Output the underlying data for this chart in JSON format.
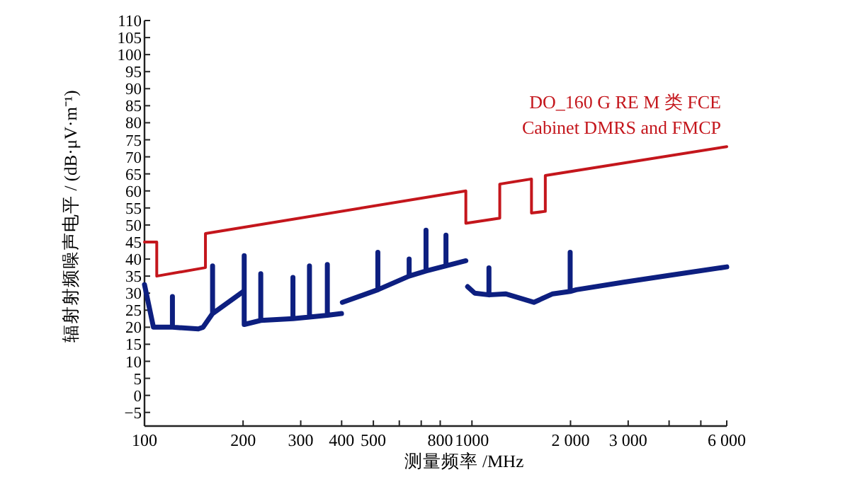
{
  "chart_data": {
    "type": "line",
    "xlabel": "测量频率 /MHz",
    "ylabel": "辐射射频噪声电平 / (dB·μV·m⁻¹)",
    "log": "x",
    "xlim": [
      100,
      6000
    ],
    "ylim": [
      -9,
      110
    ],
    "xticks": [
      100,
      200,
      300,
      400,
      500,
      {
        "value": 600,
        "label": null
      },
      {
        "value": 700,
        "label": null
      },
      800,
      {
        "value": 1000,
        "label": "1000"
      },
      {
        "value": 2000,
        "label": "2 000"
      },
      {
        "value": 3000,
        "label": "3 000"
      },
      {
        "value": 4000,
        "label": null
      },
      {
        "value": 5000,
        "label": null
      },
      {
        "value": 6000,
        "label": "6 000"
      }
    ],
    "yticks": [
      {
        "value": -5,
        "label": "−5"
      },
      0,
      5,
      10,
      15,
      20,
      25,
      30,
      35,
      40,
      45,
      50,
      55,
      60,
      65,
      70,
      75,
      80,
      85,
      90,
      95,
      100,
      105,
      110
    ],
    "series": [
      {
        "color": "#0d1f80",
        "x": [
          100,
          106.5,
          121.7,
          121.7,
          121.7,
          146,
          151,
          161.4,
          161.4,
          161.4,
          200.3
        ],
        "values": [
          32.5,
          20,
          20,
          29,
          20,
          19.5,
          20,
          24,
          38,
          24,
          30.5
        ]
      },
      {
        "color": "#0d1f80",
        "x": [
          201.6,
          201.6,
          201.6,
          226.5,
          226.5,
          226.5,
          284,
          284,
          284,
          319,
          319,
          319,
          361.7,
          361.7,
          361.7,
          399.6
        ],
        "values": [
          20.8,
          41,
          20.8,
          22,
          35.7,
          22,
          22.5,
          34.6,
          22.5,
          23,
          38,
          23,
          23.5,
          38.4,
          23.5,
          24
        ]
      },
      {
        "color": "#0d1f80",
        "x": [
          402,
          516,
          516,
          516,
          643,
          643,
          643,
          724,
          724,
          724,
          833,
          833,
          833,
          958
        ],
        "values": [
          27.3,
          31,
          42,
          31,
          35,
          40,
          35,
          36.5,
          48.5,
          36.5,
          38,
          47,
          38,
          39.5
        ]
      },
      {
        "color": "#0d1f80",
        "x": [
          970,
          1020,
          1127,
          1127,
          1127,
          1266,
          1545,
          1765,
          1995,
          1995,
          1995,
          2084,
          2906,
          4051,
          6000
        ],
        "values": [
          31.9,
          30,
          29.5,
          37.4,
          29.5,
          29.8,
          27.3,
          29.8,
          30.5,
          42,
          30.5,
          31,
          33.2,
          35.3,
          37.7
        ]
      },
      {
        "name": "DO_160 G RE M 类 FCE\nCabinet DMRS and FMCP",
        "color": "#c4161c",
        "x": [
          100,
          109,
          109,
          153.5,
          153.5,
          958,
          958,
          1216,
          1216,
          1520,
          1520,
          1675,
          1675,
          6000
        ],
        "values": [
          45,
          45,
          35,
          37.5,
          47.5,
          60,
          50.5,
          52,
          62,
          63.5,
          53.5,
          54,
          64.5,
          73
        ]
      }
    ]
  }
}
